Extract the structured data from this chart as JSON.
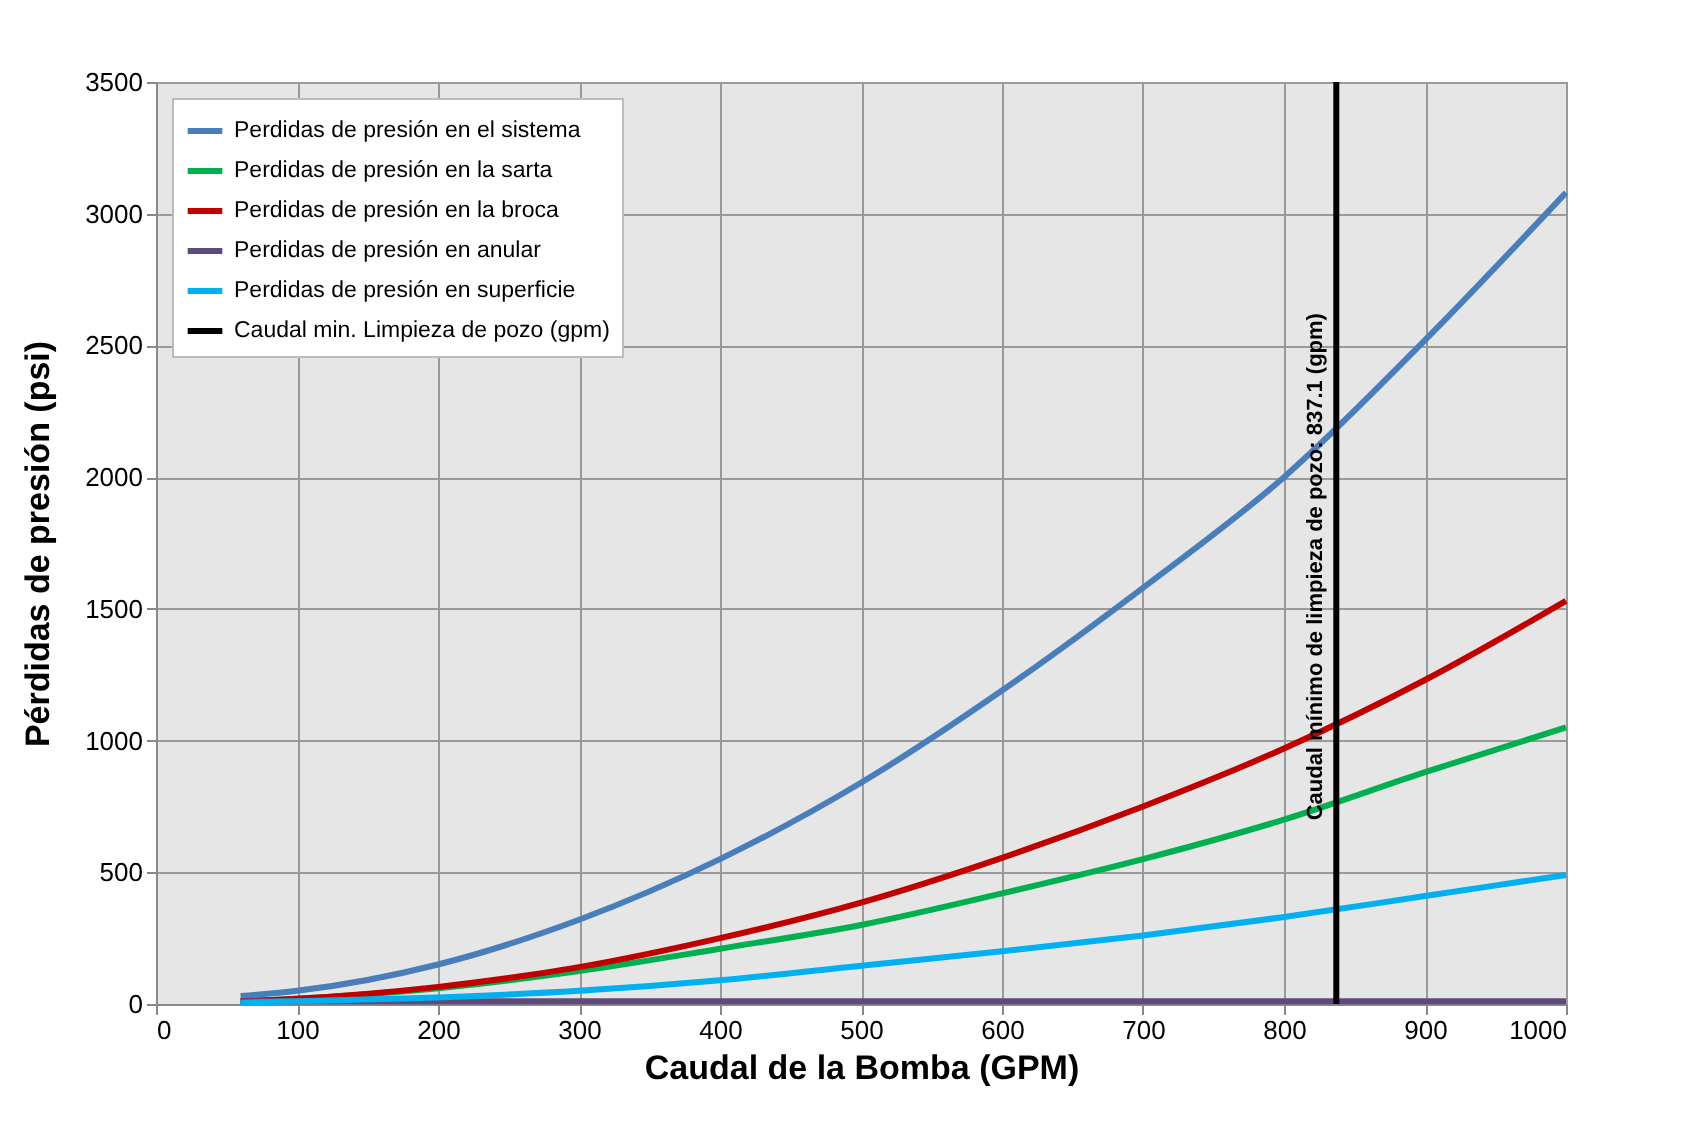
{
  "chart_data": {
    "type": "line",
    "xlabel": "Caudal de la Bomba  (GPM)",
    "ylabel": "Pérdidas de presión (psi)",
    "x": [
      60,
      100,
      200,
      300,
      400,
      500,
      600,
      700,
      800,
      900,
      1000
    ],
    "series": [
      {
        "name": "Perdidas de presión en el sistema",
        "color": "#4a7ebb",
        "values": [
          30,
          50,
          150,
          320,
          550,
          840,
          1190,
          1580,
          2000,
          2520,
          3080
        ]
      },
      {
        "name": "Perdidas de presión  en la sarta",
        "color": "#00b050",
        "values": [
          10,
          20,
          60,
          125,
          210,
          300,
          420,
          550,
          700,
          880,
          1050
        ]
      },
      {
        "name": "Perdidas de presión  en la broca",
        "color": "#c00000",
        "values": [
          10,
          20,
          65,
          140,
          250,
          385,
          555,
          750,
          970,
          1230,
          1530
        ]
      },
      {
        "name": "Perdidas de presión en anular",
        "color": "#604a7b",
        "values": [
          10,
          10,
          10,
          10,
          10,
          10,
          10,
          10,
          10,
          10,
          10
        ]
      },
      {
        "name": "Perdidas de presión  en superficie",
        "color": "#00b0f0",
        "values": [
          5,
          10,
          25,
          50,
          90,
          145,
          200,
          260,
          330,
          410,
          490
        ]
      },
      {
        "name": "Caudal min. Limpieza de pozo (gpm)",
        "color": "#000000",
        "x": [
          837.1,
          837.1
        ],
        "values": [
          0,
          3500
        ]
      }
    ],
    "annotations": [
      {
        "text": "Caudal mínimo de limpieza de pozo: 837.1 (gpm)",
        "x": 837.1,
        "y": 1660
      }
    ],
    "xlim": [
      0,
      1000
    ],
    "xticks": [
      0,
      100,
      200,
      300,
      400,
      500,
      600,
      700,
      800,
      900,
      1000
    ],
    "ylim": [
      0,
      3500
    ],
    "yticks": [
      0,
      500,
      1000,
      1500,
      2000,
      2500,
      3000,
      3500
    ],
    "grid": true,
    "legend": "top left",
    "marker": "none",
    "line_style": "solid"
  }
}
